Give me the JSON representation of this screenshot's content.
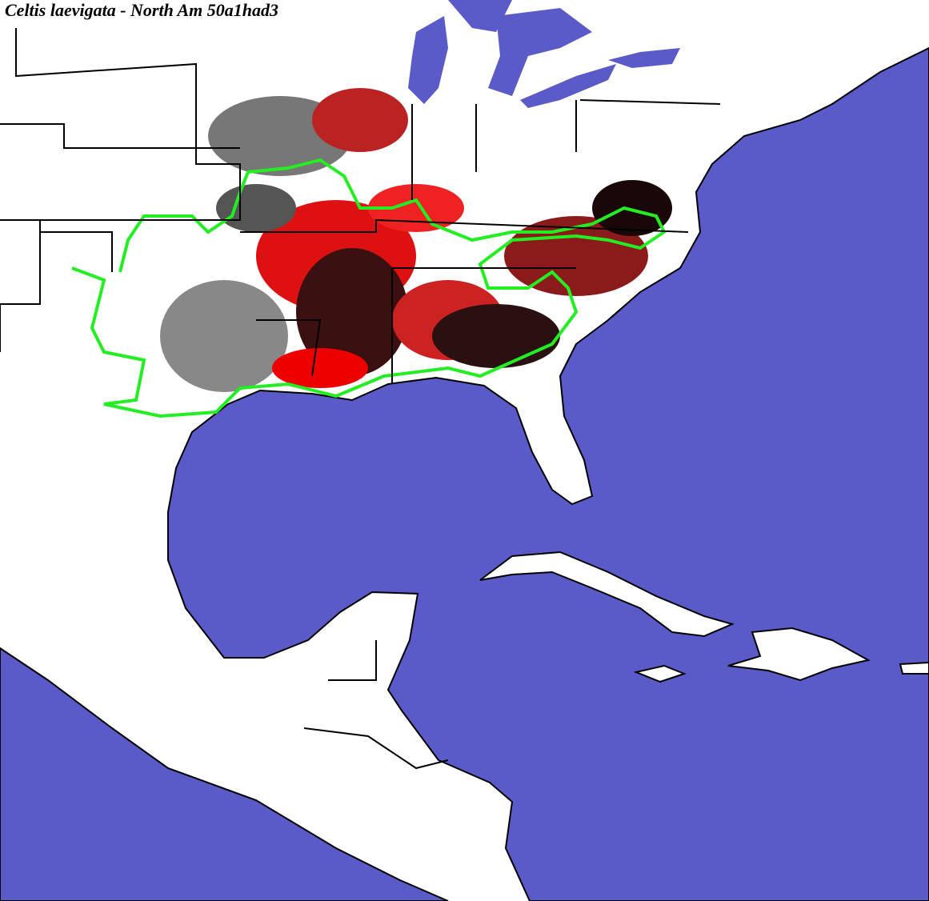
{
  "title": "Celtis laevigata - North Am 50a1had3"
}
